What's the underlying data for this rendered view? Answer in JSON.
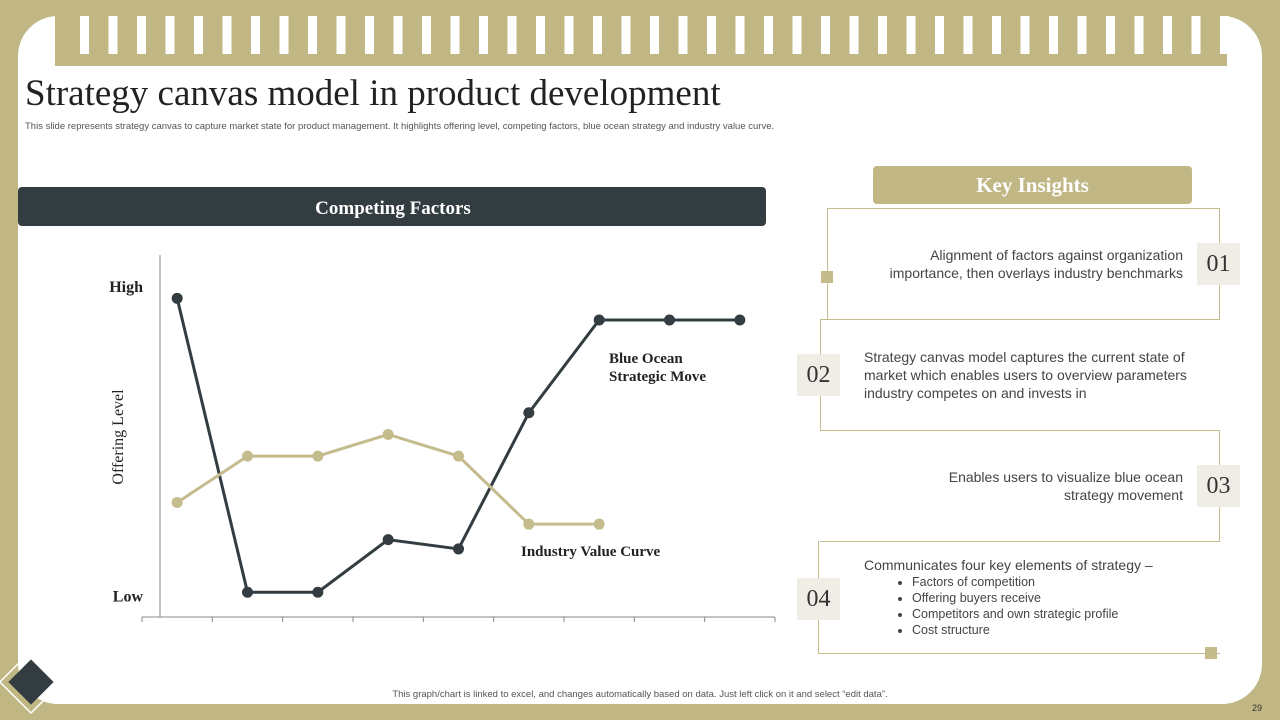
{
  "title": "Strategy canvas model in product development",
  "subtitle": "This slide represents strategy canvas to capture market state for product management. It highlights offering level, competing factors, blue ocean strategy and industry value curve.",
  "chart_data": {
    "type": "line",
    "title": "Competing Factors",
    "y_label": "Offering Level",
    "categories": [
      null,
      null,
      null,
      null,
      null,
      null,
      null,
      null,
      null
    ],
    "series": [
      {
        "name": "Blue Ocean Strategic Move",
        "color": "#333c40",
        "values": [
          9.6,
          0.1,
          0.1,
          1.8,
          1.5,
          5.9,
          8.9,
          8.9,
          8.9
        ]
      },
      {
        "name": "Industry Value Curve",
        "color": "#c5bc8e",
        "values": [
          3.0,
          4.5,
          4.5,
          5.2,
          4.5,
          2.3,
          2.3,
          null,
          null
        ]
      }
    ],
    "ylim": [
      -0.7,
      11
    ],
    "yticks": [
      {
        "value": 10,
        "label": "High"
      },
      {
        "value": 0,
        "label": "Low"
      }
    ]
  },
  "insights": {
    "title": "Key Insights",
    "items": [
      {
        "number": "01",
        "text": "Alignment of factors against organization importance, then overlays industry benchmarks"
      },
      {
        "number": "02",
        "text": "Strategy canvas model captures the current state of market which enables users to overview parameters industry competes on and invests in"
      },
      {
        "number": "03",
        "text": "Enables users to visualize blue ocean strategy movement"
      },
      {
        "number": "04",
        "text": "Communicates four key elements of strategy –",
        "bullets": [
          "Factors of competition",
          "Offering  buyers receive",
          "Competitors and own strategic profile",
          "Cost structure"
        ]
      }
    ]
  },
  "footer": "This graph/chart is linked to excel, and changes automatically based on data. Just left click on it and select “edit data”.",
  "page_number": "29"
}
